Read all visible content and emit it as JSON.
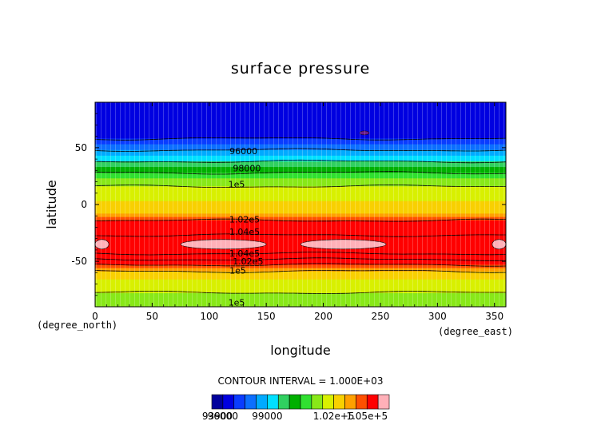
{
  "chart_data": {
    "type": "heatmap",
    "title": "surface pressure",
    "xlabel": "longitude",
    "ylabel": "latitude",
    "x_units": "(degree_east)",
    "y_units": "(degree_north)",
    "xlim": [
      0,
      360
    ],
    "ylim": [
      -90,
      90
    ],
    "x_ticks": [
      0,
      50,
      100,
      150,
      200,
      250,
      300,
      350
    ],
    "y_ticks": [
      -50,
      0,
      50
    ],
    "contour_interval_text": "CONTOUR INTERVAL = 1.000E+03",
    "contour_labels": [
      {
        "text": "96000",
        "lon": 130,
        "lat": 47
      },
      {
        "text": "98000",
        "lon": 133,
        "lat": 32
      },
      {
        "text": "1e5",
        "lon": 124,
        "lat": 18
      },
      {
        "text": "1.02e5",
        "lon": 131,
        "lat": -13
      },
      {
        "text": "1.04e5",
        "lon": 131,
        "lat": -24
      },
      {
        "text": "1.04e5",
        "lon": 131,
        "lat": -43
      },
      {
        "text": "1.02e5",
        "lon": 134,
        "lat": -50
      },
      {
        "text": "1e5",
        "lon": 125,
        "lat": -58
      },
      {
        "text": "1e5",
        "lon": 124,
        "lat": -86
      }
    ],
    "colorbar": {
      "colors": [
        "#00009c",
        "#0000e0",
        "#0a3cff",
        "#0c6fff",
        "#00aaff",
        "#00e0ff",
        "#30d060",
        "#00b000",
        "#30e030",
        "#88e818",
        "#d8f000",
        "#f8d000",
        "#ffa000",
        "#ff5000",
        "#ff0000",
        "#ffb0b8"
      ],
      "tick_labels": [
        "93900",
        "96000",
        "99000",
        "1.02e+5",
        "1.05e+5"
      ]
    },
    "levels": [
      93900,
      96000,
      97000,
      98000,
      99000,
      100000,
      101000,
      102000,
      103000,
      104000,
      105000
    ],
    "zonal_profile": [
      {
        "lat": 90,
        "value": 95000
      },
      {
        "lat": 70,
        "value": 95300
      },
      {
        "lat": 60,
        "value": 95800
      },
      {
        "lat": 55,
        "value": 96300
      },
      {
        "lat": 50,
        "value": 96800
      },
      {
        "lat": 45,
        "value": 97300
      },
      {
        "lat": 40,
        "value": 97800
      },
      {
        "lat": 35,
        "value": 98300
      },
      {
        "lat": 30,
        "value": 98800
      },
      {
        "lat": 25,
        "value": 99300
      },
      {
        "lat": 20,
        "value": 99800
      },
      {
        "lat": 10,
        "value": 100300
      },
      {
        "lat": 0,
        "value": 100600
      },
      {
        "lat": -8,
        "value": 101000
      },
      {
        "lat": -12,
        "value": 101700
      },
      {
        "lat": -16,
        "value": 102300
      },
      {
        "lat": -20,
        "value": 103000
      },
      {
        "lat": -24,
        "value": 103700
      },
      {
        "lat": -30,
        "value": 104300
      },
      {
        "lat": -36,
        "value": 104500
      },
      {
        "lat": -42,
        "value": 104200
      },
      {
        "lat": -46,
        "value": 103500
      },
      {
        "lat": -50,
        "value": 102600
      },
      {
        "lat": -55,
        "value": 101600
      },
      {
        "lat": -60,
        "value": 100800
      },
      {
        "lat": -70,
        "value": 100300
      },
      {
        "lat": -80,
        "value": 99900
      },
      {
        "lat": -90,
        "value": 99700
      }
    ],
    "high_pressure_cells": [
      {
        "lon_start": 0,
        "lon_end": 12,
        "lat": -35
      },
      {
        "lon_start": 75,
        "lon_end": 150,
        "lat": -35
      },
      {
        "lon_start": 180,
        "lon_end": 255,
        "lat": -35
      },
      {
        "lon_start": 348,
        "lon_end": 360,
        "lat": -35
      }
    ],
    "low_pressure_cells": [
      {
        "lon": 236,
        "lat": 63
      }
    ]
  }
}
